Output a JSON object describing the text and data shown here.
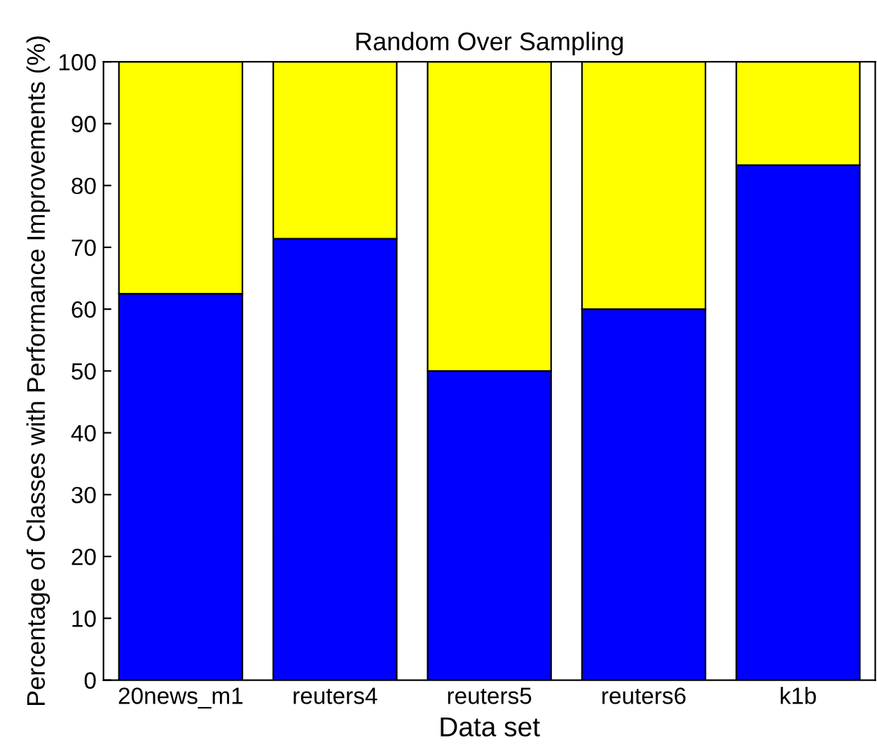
{
  "chart_data": {
    "type": "bar",
    "stacked": true,
    "title": "Random Over Sampling",
    "xlabel": "Data set",
    "ylabel": "Percentage of Classes with Performance Improvements (%)",
    "categories": [
      "20news_m1",
      "reuters4",
      "reuters5",
      "reuters6",
      "k1b"
    ],
    "series": [
      {
        "color": "#0000ff",
        "values": [
          62.5,
          71.4,
          50,
          60,
          83.3
        ]
      },
      {
        "color": "#ffff00",
        "values": [
          37.5,
          28.6,
          50,
          40,
          16.7
        ]
      }
    ],
    "ylim": [
      0,
      100
    ],
    "yticks": [
      0,
      10,
      20,
      30,
      40,
      50,
      60,
      70,
      80,
      90,
      100
    ]
  }
}
